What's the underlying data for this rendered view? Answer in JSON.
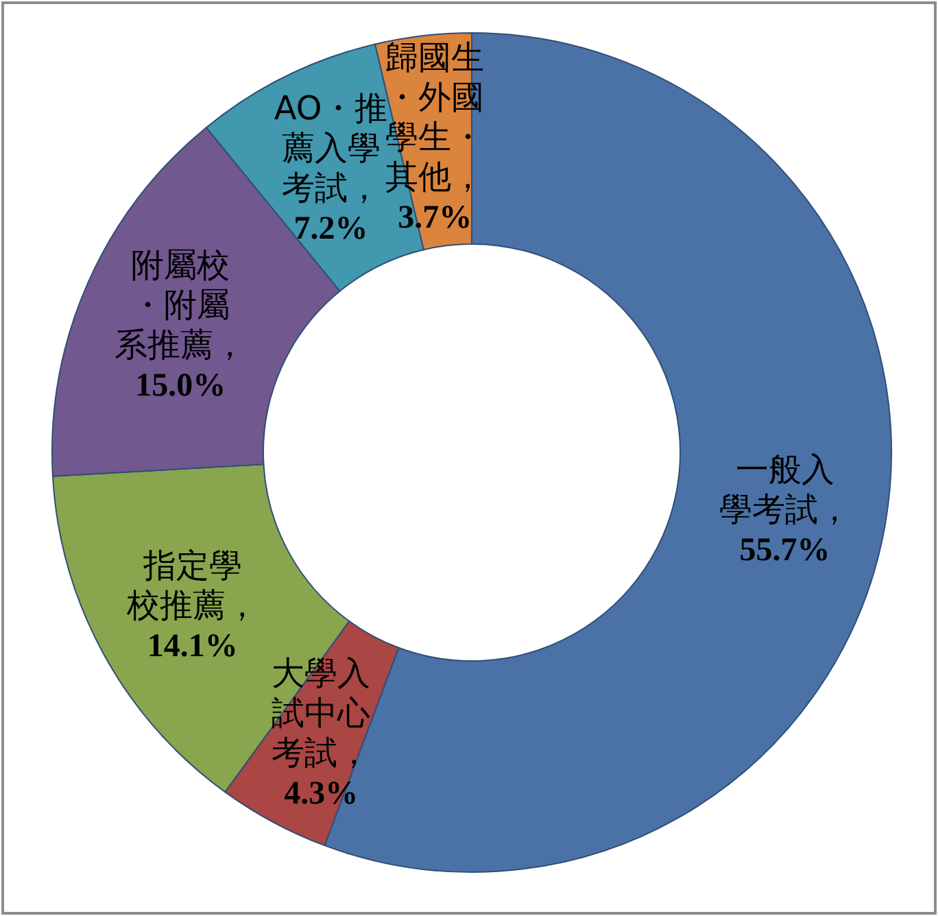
{
  "chart_data": {
    "type": "donut",
    "categories": [
      "一般入學考試",
      "大學入試中心考試",
      "指定學校推薦",
      "附屬校・附屬系推薦",
      "AO・推薦入學考試",
      "歸國生・外國學生・其他"
    ],
    "value_labels": [
      "，55.7%",
      "，4.3%",
      "，14.1%",
      "，15.0%",
      "，7.2%",
      "，3.7%"
    ],
    "values": [
      55.7,
      4.3,
      14.1,
      15.0,
      7.2,
      3.7
    ],
    "colors": [
      "#4a72a6",
      "#aa4643",
      "#89a54e",
      "#71588f",
      "#4198af",
      "#db843d"
    ]
  }
}
